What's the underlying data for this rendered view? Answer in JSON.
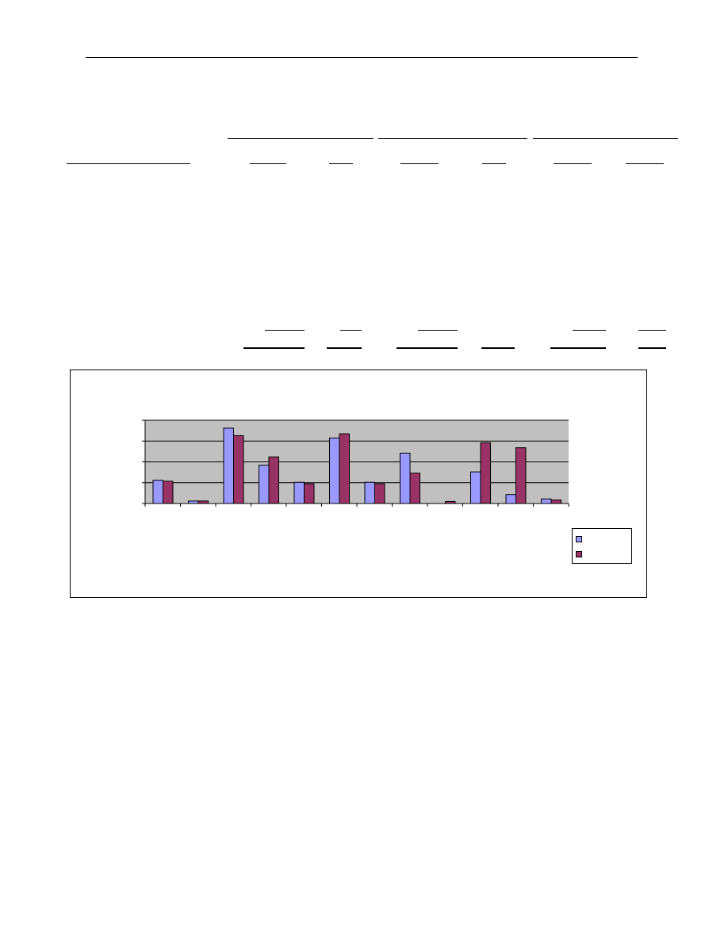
{
  "colors": {
    "series_1": "#9999ff",
    "series_2": "#993366",
    "plot_area": "#c0c0c0",
    "gridline": "#000000"
  },
  "chart_data": {
    "type": "bar",
    "title": "",
    "xlabel": "",
    "ylabel": "",
    "categories_count": 12,
    "ylim": [
      0,
      4
    ],
    "yticks": [
      0,
      1,
      2,
      3,
      4
    ],
    "grid": true,
    "legend_position": "bottom-right",
    "series": [
      {
        "name": "",
        "color": "#9999ff",
        "values": [
          1.12,
          0.12,
          3.62,
          1.84,
          1.02,
          3.15,
          1.02,
          2.42,
          0.0,
          1.52,
          0.43,
          0.22
        ]
      },
      {
        "name": "",
        "color": "#993366",
        "values": [
          1.07,
          0.12,
          3.26,
          2.24,
          0.95,
          3.35,
          0.95,
          1.46,
          0.1,
          2.92,
          2.68,
          0.17
        ]
      }
    ]
  }
}
